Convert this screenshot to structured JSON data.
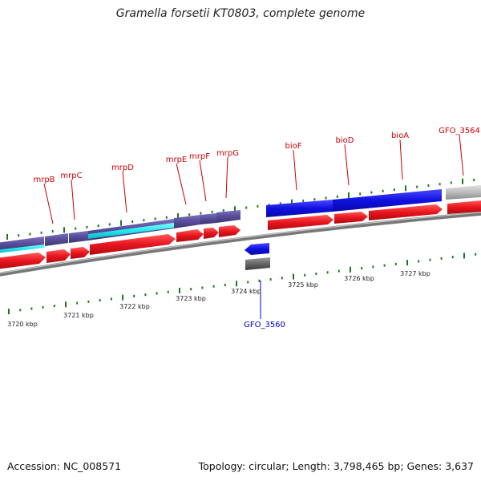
{
  "title": "Gramella forsetii KT0803, complete genome",
  "footer": {
    "accession": "Accession: NC_008571",
    "summary": "Topology: circular; Length: 3,798,465 bp; Genes: 3,637"
  },
  "scale_labels": [
    "3720 kbp",
    "3721 kbp",
    "3722 kbp",
    "3723 kbp",
    "3724 kbp",
    "3725 kbp",
    "3726 kbp",
    "3727 kbp"
  ],
  "forward_genes": [
    {
      "name": "mrpB"
    },
    {
      "name": "mrpC"
    },
    {
      "name": "mrpD"
    },
    {
      "name": "mrpE"
    },
    {
      "name": "mrpF"
    },
    {
      "name": "mrpG"
    },
    {
      "name": "bioF"
    },
    {
      "name": "bioD"
    },
    {
      "name": "bioA"
    },
    {
      "name": "GFO_3564"
    }
  ],
  "reverse_genes": [
    {
      "name": "GFO_3560"
    }
  ],
  "colors": {
    "forward_label": "#cc0000",
    "reverse_label": "#0000cc",
    "cds": "#e8141e",
    "gene_blue": "#1010e0",
    "gene_purple": "#5a4f9c",
    "gene_cyan": "#20e8f0",
    "gene_grey": "#b8b8b8",
    "backbone": "#888888",
    "tick": "#1a7a1a"
  }
}
